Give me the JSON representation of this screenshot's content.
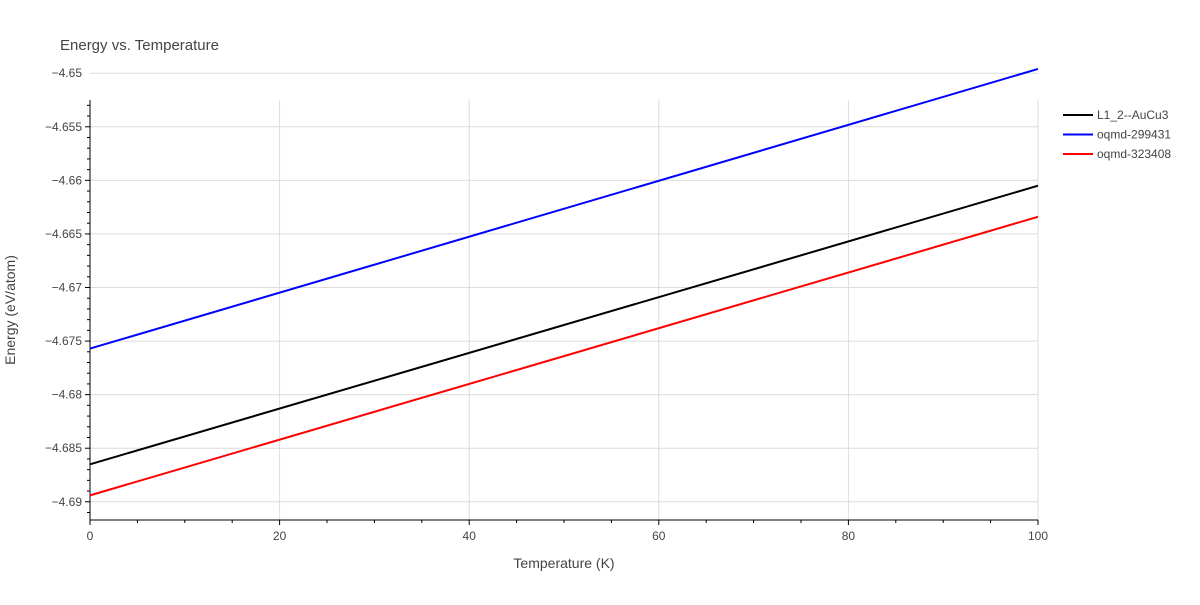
{
  "chart_data": {
    "type": "line",
    "title": "Energy vs. Temperature",
    "xlabel": "Temperature (K)",
    "ylabel": "Energy (eV/atom)",
    "xlim": [
      0,
      100
    ],
    "ylim": [
      -4.6917,
      -4.6525
    ],
    "x_ticks": [
      0,
      20,
      40,
      60,
      80,
      100
    ],
    "x_tick_labels": [
      "0",
      "20",
      "40",
      "60",
      "80",
      "100"
    ],
    "y_ticks": [
      -4.65,
      -4.655,
      -4.66,
      -4.665,
      -4.67,
      -4.675,
      -4.68,
      -4.685,
      -4.69
    ],
    "y_tick_labels": [
      "−4.65",
      "−4.655",
      "−4.66",
      "−4.665",
      "−4.67",
      "−4.675",
      "−4.68",
      "−4.685",
      "−4.69"
    ],
    "grid": true,
    "legend_position": "top-right",
    "series": [
      {
        "name": "L1_2--AuCu3",
        "color": "#000000",
        "x": [
          0,
          100
        ],
        "y": [
          -4.6865,
          -4.6605
        ]
      },
      {
        "name": "oqmd-299431",
        "color": "#0000ff",
        "x": [
          0,
          100
        ],
        "y": [
          -4.6757,
          -4.6496
        ]
      },
      {
        "name": "oqmd-323408",
        "color": "#ff0000",
        "x": [
          0,
          100
        ],
        "y": [
          -4.6894,
          -4.6634
        ]
      }
    ]
  }
}
